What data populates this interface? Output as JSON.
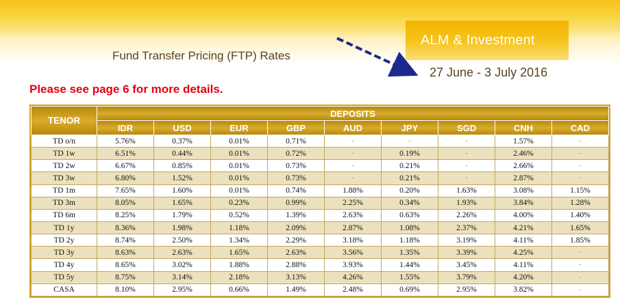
{
  "header": {
    "department": "ALM & Investment",
    "title": "Fund Transfer Pricing (FTP) Rates",
    "period": "27 June - 3 July 2016"
  },
  "note": "Please see page 6 for more details.",
  "table": {
    "tenor_header": "TENOR",
    "group_header": "DEPOSITS",
    "currencies": [
      "IDR",
      "USD",
      "EUR",
      "GBP",
      "AUD",
      "JPY",
      "SGD",
      "CNH",
      "CAD"
    ],
    "rows": [
      {
        "tenor": "TD o/n",
        "values": [
          "5.76%",
          "0.37%",
          "0.01%",
          "0.71%",
          "-",
          "-",
          "-",
          "1.57%",
          "-"
        ]
      },
      {
        "tenor": "TD 1w",
        "values": [
          "6.51%",
          "0.44%",
          "0.01%",
          "0.72%",
          "-",
          "0.19%",
          "-",
          "2.46%",
          "-"
        ]
      },
      {
        "tenor": "TD 2w",
        "values": [
          "6.67%",
          "0.85%",
          "0.01%",
          "0.73%",
          "-",
          "0.21%",
          "-",
          "2.66%",
          "-"
        ]
      },
      {
        "tenor": "TD 3w",
        "values": [
          "6.80%",
          "1.52%",
          "0.01%",
          "0.73%",
          "-",
          "0.21%",
          "-",
          "2.87%",
          "-"
        ]
      },
      {
        "tenor": "TD 1m",
        "values": [
          "7.65%",
          "1.60%",
          "0.01%",
          "0.74%",
          "1.88%",
          "0.20%",
          "1.63%",
          "3.08%",
          "1.15%"
        ]
      },
      {
        "tenor": "TD 3m",
        "values": [
          "8.05%",
          "1.65%",
          "0.23%",
          "0.99%",
          "2.25%",
          "0.34%",
          "1.93%",
          "3.84%",
          "1.28%"
        ]
      },
      {
        "tenor": "TD 6m",
        "values": [
          "8.25%",
          "1.79%",
          "0.52%",
          "1.39%",
          "2.63%",
          "0.63%",
          "2.26%",
          "4.00%",
          "1.40%"
        ]
      },
      {
        "tenor": "TD 1y",
        "values": [
          "8.36%",
          "1.98%",
          "1.18%",
          "2.09%",
          "2.87%",
          "1.08%",
          "2.37%",
          "4.21%",
          "1.65%"
        ]
      },
      {
        "tenor": "TD 2y",
        "values": [
          "8.74%",
          "2.50%",
          "1.34%",
          "2.29%",
          "3.18%",
          "1.18%",
          "3.19%",
          "4.11%",
          "1.85%"
        ]
      },
      {
        "tenor": "TD 3y",
        "values": [
          "8.63%",
          "2.63%",
          "1.65%",
          "2.63%",
          "3.56%",
          "1.35%",
          "3.39%",
          "4.25%",
          "-"
        ]
      },
      {
        "tenor": "TD 4y",
        "values": [
          "8.65%",
          "3.02%",
          "1.88%",
          "2.88%",
          "3.93%",
          "1.44%",
          "3.45%",
          "4.11%",
          "-"
        ]
      },
      {
        "tenor": "TD 5y",
        "values": [
          "8.75%",
          "3.14%",
          "2.18%",
          "3.13%",
          "4.26%",
          "1.55%",
          "3.79%",
          "4.20%",
          "-"
        ]
      },
      {
        "tenor": "CASA",
        "values": [
          "8.10%",
          "2.95%",
          "0.66%",
          "1.49%",
          "2.48%",
          "0.69%",
          "2.95%",
          "3.82%",
          "-"
        ]
      }
    ]
  }
}
